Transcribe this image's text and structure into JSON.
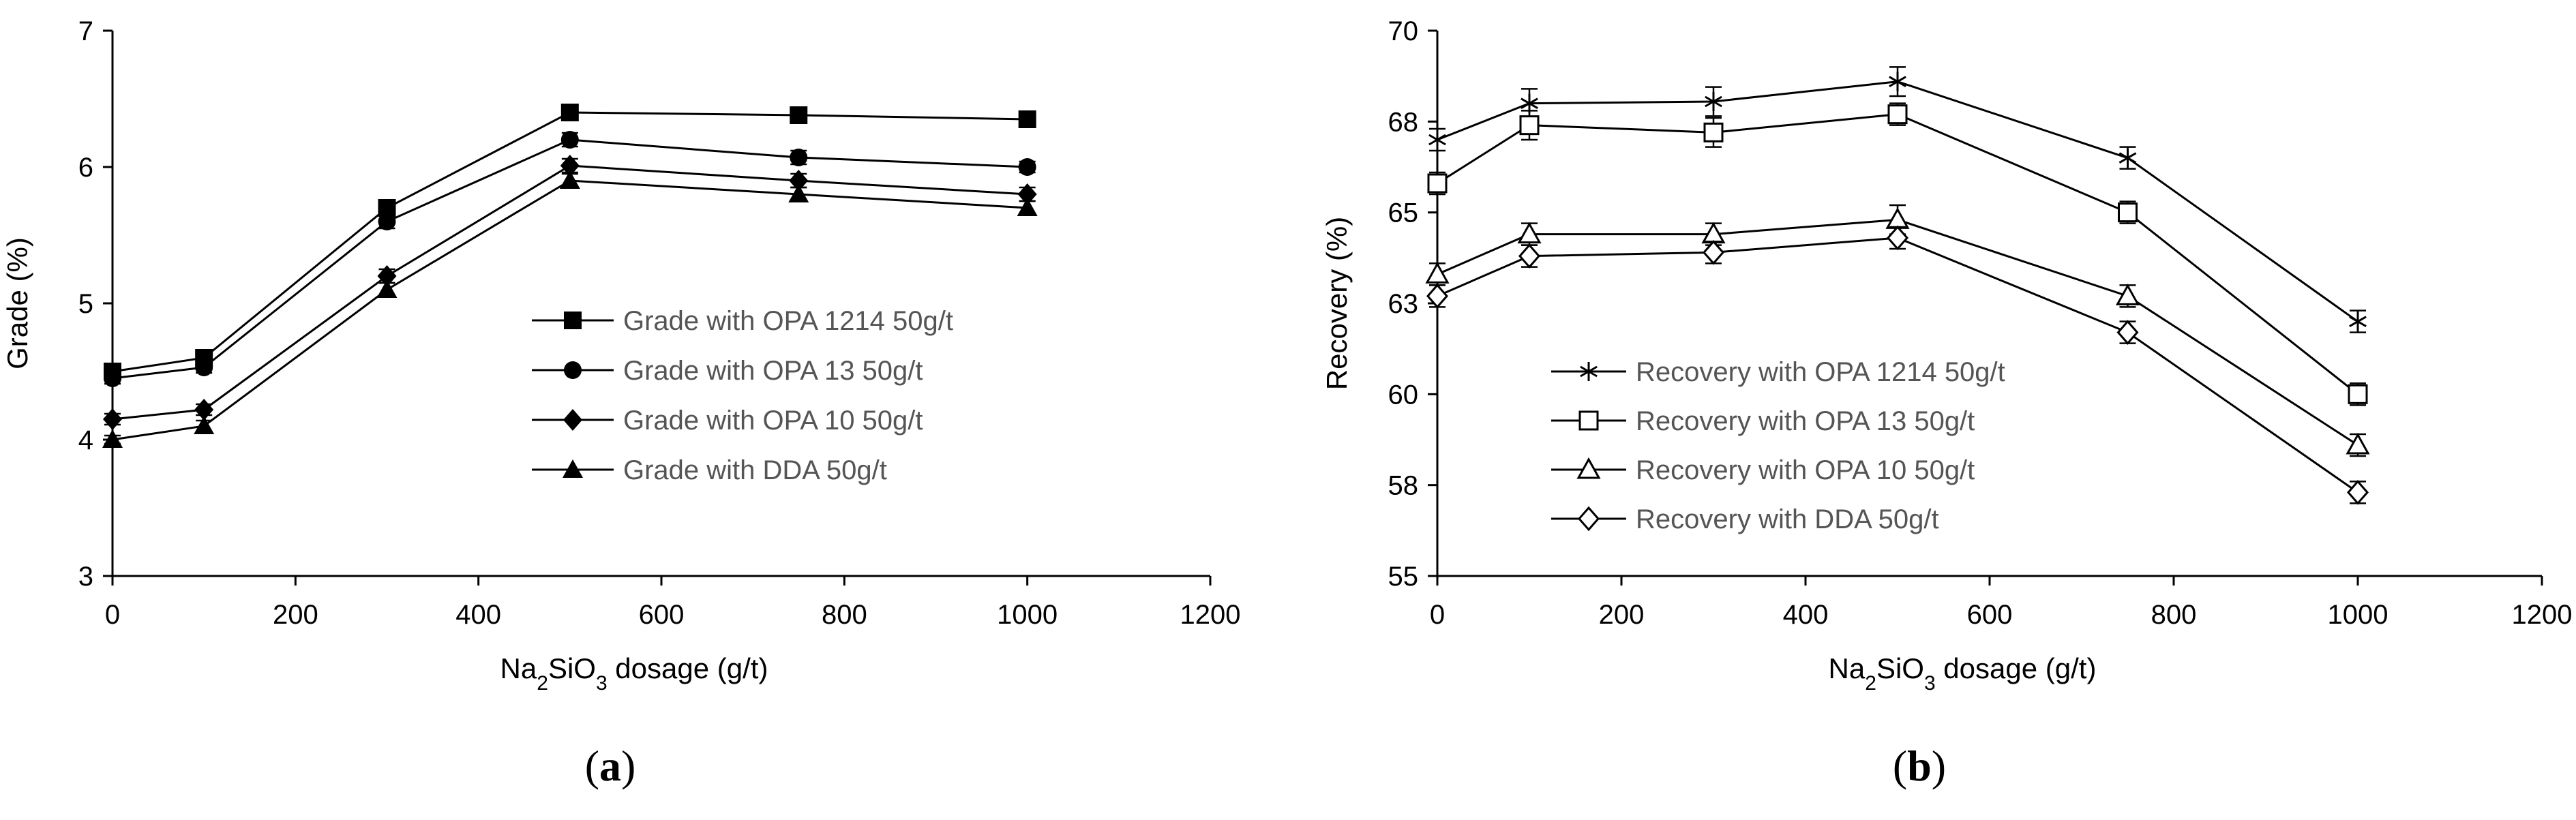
{
  "chart_data": [
    {
      "type": "line",
      "panel_label": "a",
      "title": "",
      "xlabel": "Na2SiO3 dosage (g/t)",
      "xlabel_parts": [
        "Na",
        "2",
        "SiO",
        "3",
        " dosage (g/t)"
      ],
      "ylabel": "Grade (%)",
      "xlim": [
        0,
        1200
      ],
      "ylim": [
        3,
        7
      ],
      "xticks": [
        0,
        200,
        400,
        600,
        800,
        1000,
        1200
      ],
      "yticks": [
        3,
        4,
        5,
        6,
        7
      ],
      "xtick_labels": [
        "0",
        "200",
        "400",
        "600",
        "800",
        "1000",
        "1200"
      ],
      "ytick_labels": [
        "3",
        "4",
        "5",
        "6",
        "7"
      ],
      "legend_position": "center-right",
      "x": [
        0,
        100,
        300,
        500,
        750,
        1000
      ],
      "series": [
        {
          "name": "Grade with OPA 1214 50g/t",
          "marker": "square-filled",
          "values": [
            4.5,
            4.6,
            5.7,
            6.4,
            6.38,
            6.35
          ],
          "error": [
            0.05,
            0.05,
            0.05,
            0.05,
            0.05,
            0.05
          ]
        },
        {
          "name": "Grade with OPA 13 50g/t",
          "marker": "circle-filled",
          "values": [
            4.45,
            4.53,
            5.6,
            6.2,
            6.07,
            6.0
          ],
          "error": [
            0.04,
            0.04,
            0.05,
            0.05,
            0.05,
            0.04
          ]
        },
        {
          "name": "Grade with OPA 10 50g/t",
          "marker": "diamond-filled",
          "values": [
            4.15,
            4.22,
            5.2,
            6.01,
            5.9,
            5.8
          ],
          "error": [
            0.04,
            0.04,
            0.05,
            0.05,
            0.05,
            0.05
          ]
        },
        {
          "name": "Grade with DDA 50g/t",
          "marker": "triangle-filled",
          "values": [
            4.0,
            4.1,
            5.1,
            5.9,
            5.8,
            5.7
          ],
          "error": [
            0.03,
            0.04,
            0.05,
            0.05,
            0.05,
            0.05
          ]
        }
      ]
    },
    {
      "type": "line",
      "panel_label": "b",
      "title": "",
      "xlabel": "Na2SiO3 dosage (g/t)",
      "xlabel_parts": [
        "Na",
        "2",
        "SiO",
        "3",
        " dosage (g/t)"
      ],
      "ylabel": "Recovery (%)",
      "xlim": [
        0,
        1200
      ],
      "ylim": [
        55,
        70
      ],
      "xticks": [
        0,
        200,
        400,
        600,
        800,
        1000,
        1200
      ],
      "yticks": [
        55,
        57.5,
        60,
        62.5,
        65,
        67.5,
        70
      ],
      "xtick_labels": [
        "0",
        "200",
        "400",
        "600",
        "800",
        "1000",
        "1200"
      ],
      "ytick_labels": [
        "55",
        "58",
        "60",
        "63",
        "65",
        "68",
        "70"
      ],
      "legend_position": "bottom-left",
      "x": [
        0,
        100,
        300,
        500,
        750,
        1000
      ],
      "series": [
        {
          "name": "Recovery with OPA 1214 50g/t",
          "marker": "star-asterisk",
          "values": [
            67.0,
            68.0,
            68.05,
            68.6,
            66.5,
            62.0
          ],
          "error": [
            0.3,
            0.4,
            0.4,
            0.4,
            0.3,
            0.3
          ]
        },
        {
          "name": "Recovery with OPA 13 50g/t",
          "marker": "square-open",
          "values": [
            65.8,
            67.4,
            67.2,
            67.7,
            65.0,
            60.0
          ],
          "error": [
            0.3,
            0.4,
            0.4,
            0.3,
            0.3,
            0.3
          ]
        },
        {
          "name": "Recovery with OPA 10 50g/t",
          "marker": "triangle-open",
          "values": [
            63.3,
            64.4,
            64.4,
            64.8,
            62.7,
            58.6
          ],
          "error": [
            0.3,
            0.3,
            0.3,
            0.4,
            0.3,
            0.3
          ]
        },
        {
          "name": "Recovery with DDA 50g/t",
          "marker": "diamond-open",
          "values": [
            62.7,
            63.8,
            63.9,
            64.3,
            61.7,
            57.3
          ],
          "error": [
            0.3,
            0.3,
            0.3,
            0.3,
            0.3,
            0.3
          ]
        }
      ]
    }
  ]
}
